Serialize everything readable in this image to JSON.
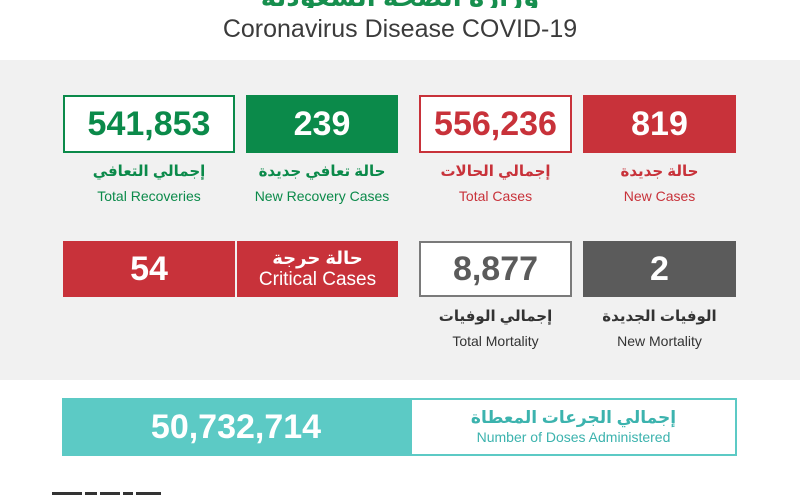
{
  "header": {
    "title_ar_cut": "وزارة الصحة السعودية",
    "title": "Coronavirus Disease COVID-19"
  },
  "stats": {
    "new_cases": {
      "value": "819",
      "label_ar": "حالة جديدة",
      "label_en": "New Cases"
    },
    "total_cases": {
      "value": "556,236",
      "label_ar": "إجمالي الحالات",
      "label_en": "Total Cases"
    },
    "new_recoveries": {
      "value": "239",
      "label_ar": "حالة تعافي جديدة",
      "label_en": "New Recovery Cases"
    },
    "total_recoveries": {
      "value": "541,853",
      "label_ar": "إجمالي التعافي",
      "label_en": "Total Recoveries"
    },
    "new_mortality": {
      "value": "2",
      "label_ar": "الوفيات الجديدة",
      "label_en": "New Mortality"
    },
    "total_mortality": {
      "value": "8,877",
      "label_ar": "إجمالي الوفيات",
      "label_en": "Total Mortality"
    },
    "critical": {
      "value": "54",
      "label_ar": "حالة حرجة",
      "label_en": "Critical Cases"
    }
  },
  "doses": {
    "value": "50,732,714",
    "label_ar": "إجمالي الجرعات المعطاة",
    "label_en": "Number of Doses Administered"
  },
  "colors": {
    "green": "#0b8a4a",
    "red": "#c8323a",
    "gray": "#5b5b5b",
    "teal": "#5ccac5"
  }
}
